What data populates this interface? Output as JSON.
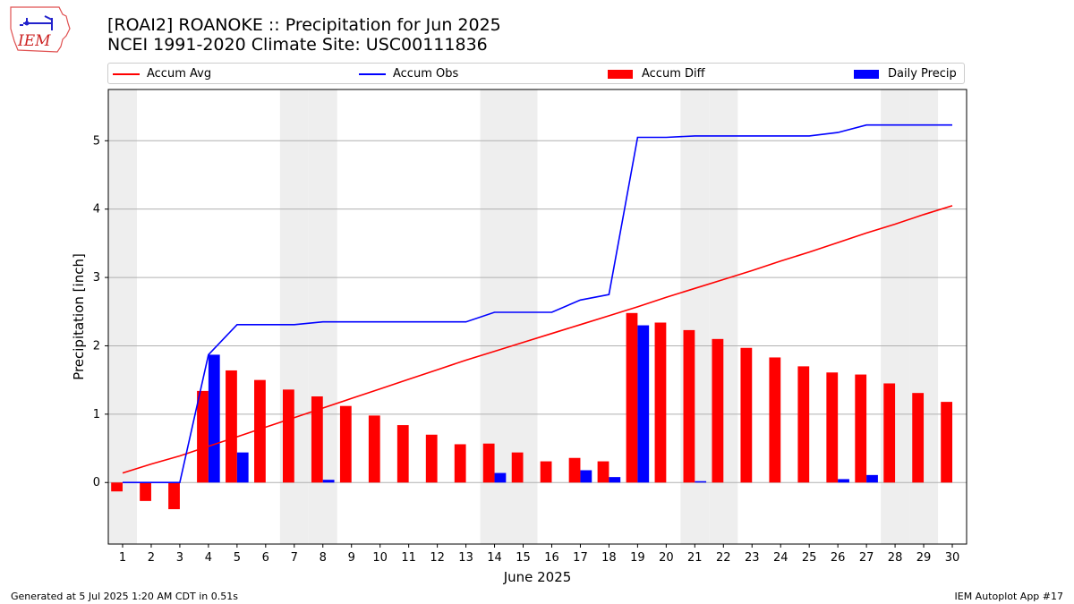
{
  "header": {
    "title": "[ROAI2] ROANOKE :: Precipitation for Jun 2025",
    "subtitle": "NCEI 1991-2020 Climate Site: USC00111836",
    "logo_text": "IEM"
  },
  "footer": {
    "generated": "Generated at 5 Jul 2025 1:20 AM CDT in 0.51s",
    "app": "IEM Autoplot App #17"
  },
  "colors": {
    "avg": "#ff0000",
    "obs": "#0000ff",
    "diff": "#ff0000",
    "daily": "#0000ff",
    "weekend_shade": "#eeeeee"
  },
  "chart_data": {
    "type": "bar",
    "title": "[ROAI2] ROANOKE :: Precipitation for Jun 2025",
    "subtitle": "NCEI 1991-2020 Climate Site: USC00111836",
    "xlabel": "June 2025",
    "ylabel": "Precipitation [inch]",
    "ylim": [
      -0.9,
      5.75
    ],
    "yticks": [
      0,
      1,
      2,
      3,
      4,
      5
    ],
    "grid": "horizontal",
    "legend_placement": "top",
    "x": [
      1,
      2,
      3,
      4,
      5,
      6,
      7,
      8,
      9,
      10,
      11,
      12,
      13,
      14,
      15,
      16,
      17,
      18,
      19,
      20,
      21,
      22,
      23,
      24,
      25,
      26,
      27,
      28,
      29,
      30
    ],
    "shaded_days": [
      1,
      7,
      8,
      14,
      15,
      21,
      22,
      28,
      29
    ],
    "series": [
      {
        "name": "Accum Avg",
        "kind": "line",
        "values": [
          0.14,
          0.27,
          0.39,
          0.53,
          0.67,
          0.81,
          0.95,
          1.09,
          1.23,
          1.37,
          1.51,
          1.65,
          1.79,
          1.92,
          2.05,
          2.18,
          2.31,
          2.44,
          2.57,
          2.71,
          2.84,
          2.97,
          3.1,
          3.24,
          3.37,
          3.51,
          3.65,
          3.78,
          3.92,
          4.05
        ]
      },
      {
        "name": "Accum Obs",
        "kind": "line",
        "values": [
          0.0,
          0.0,
          0.0,
          1.87,
          2.31,
          2.31,
          2.31,
          2.35,
          2.35,
          2.35,
          2.35,
          2.35,
          2.35,
          2.49,
          2.49,
          2.49,
          2.67,
          2.75,
          5.05,
          5.05,
          5.07,
          5.07,
          5.07,
          5.07,
          5.07,
          5.12,
          5.23,
          5.23,
          5.23,
          5.23
        ]
      },
      {
        "name": "Accum Diff",
        "kind": "bar",
        "values": [
          -0.13,
          -0.27,
          -0.39,
          1.34,
          1.64,
          1.5,
          1.36,
          1.26,
          1.12,
          0.98,
          0.84,
          0.7,
          0.56,
          0.57,
          0.44,
          0.31,
          0.36,
          0.31,
          2.48,
          2.34,
          2.23,
          2.1,
          1.97,
          1.83,
          1.7,
          1.61,
          1.58,
          1.45,
          1.31,
          1.18
        ]
      },
      {
        "name": "Daily Precip",
        "kind": "bar",
        "values": [
          0,
          0,
          0,
          1.87,
          0.44,
          0,
          0,
          0.04,
          0,
          0,
          0,
          0,
          0,
          0.14,
          0,
          0,
          0.18,
          0.08,
          2.3,
          0,
          0.02,
          0,
          0,
          0,
          0,
          0.05,
          0.11,
          0,
          0,
          0
        ]
      }
    ]
  }
}
